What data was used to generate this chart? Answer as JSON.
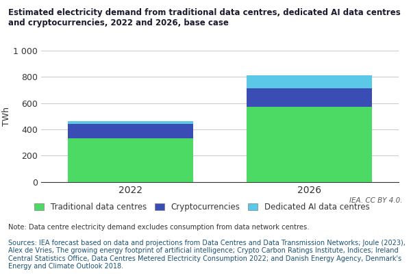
{
  "categories": [
    "2022",
    "2026"
  ],
  "traditional": [
    330,
    570
  ],
  "crypto": [
    110,
    140
  ],
  "ai": [
    20,
    100
  ],
  "colors": {
    "traditional": "#4cd964",
    "crypto": "#3a4db5",
    "ai": "#5bc8e8"
  },
  "ylim": [
    0,
    1000
  ],
  "yticks": [
    0,
    200,
    400,
    600,
    800,
    "1 000"
  ],
  "ytick_values": [
    0,
    200,
    400,
    600,
    800,
    1000
  ],
  "ylabel": "TWh",
  "title_line1": "Estimated electricity demand from traditional data centres, dedicated AI data centres",
  "title_line2": "and cryptocurrencies, 2022 and 2026, base case",
  "legend_labels": [
    "Traditional data centres",
    "Cryptocurrencies",
    "Dedicated AI data centres"
  ],
  "note": "Note: Data centre electricity demand excludes consumption from data network centres.",
  "source_plain": "Sources: IEA forecast based on data and projections from ",
  "iea_credit": "IEA. CC BY 4.0.",
  "bg_color": "#ffffff",
  "grid_color": "#cccccc",
  "bar_width": 0.35,
  "title_color": "#1a1a2e",
  "axis_color": "#333333",
  "note_color": "#333333",
  "source_color": "#1a5276"
}
